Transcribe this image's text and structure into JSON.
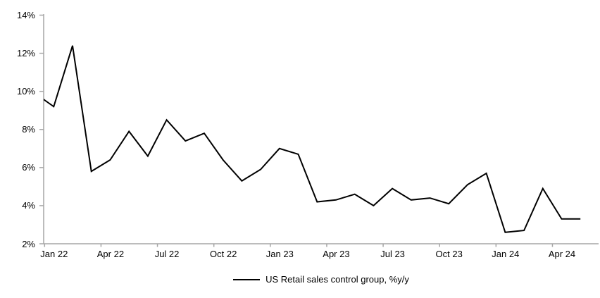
{
  "chart_data": {
    "type": "line",
    "title": "",
    "legend": "US Retail sales control group, %y/y",
    "series_color": "#000000",
    "axis_color": "#a6a6a6",
    "grid": false,
    "legend_position": "bottom-center",
    "ylim": [
      2,
      14
    ],
    "y_tick_labels": [
      "2%",
      "4%",
      "6%",
      "8%",
      "10%",
      "12%",
      "14%"
    ],
    "y_tick_values": [
      2,
      4,
      6,
      8,
      10,
      12,
      14
    ],
    "x_tick_labels": [
      "Jan 22",
      "Apr 22",
      "Jul 22",
      "Oct 22",
      "Jan 23",
      "Apr 23",
      "Jul 23",
      "Oct 23",
      "Jan 24",
      "Apr 24"
    ],
    "x_tick_month_indices": [
      0,
      3,
      6,
      9,
      12,
      15,
      18,
      21,
      24,
      27
    ],
    "x_months": [
      "Jan 22",
      "Feb 22",
      "Mar 22",
      "Apr 22",
      "May 22",
      "Jun 22",
      "Jul 22",
      "Aug 22",
      "Sep 22",
      "Oct 22",
      "Nov 22",
      "Dec 22",
      "Jan 23",
      "Feb 23",
      "Mar 23",
      "Apr 23",
      "May 23",
      "Jun 23",
      "Jul 23",
      "Aug 23",
      "Sep 23",
      "Oct 23",
      "Nov 23",
      "Dec 23",
      "Jan 24",
      "Feb 24",
      "Mar 24",
      "Apr 24",
      "May 24",
      "Jun 24"
    ],
    "values": [
      9.9,
      9.2,
      12.4,
      5.8,
      6.4,
      7.9,
      6.6,
      8.5,
      7.4,
      7.8,
      6.4,
      5.3,
      5.9,
      7.0,
      6.7,
      4.2,
      4.3,
      4.6,
      4.0,
      4.9,
      4.3,
      4.4,
      4.1,
      5.1,
      5.7,
      2.6,
      2.7,
      4.9,
      3.3,
      3.3
    ]
  }
}
